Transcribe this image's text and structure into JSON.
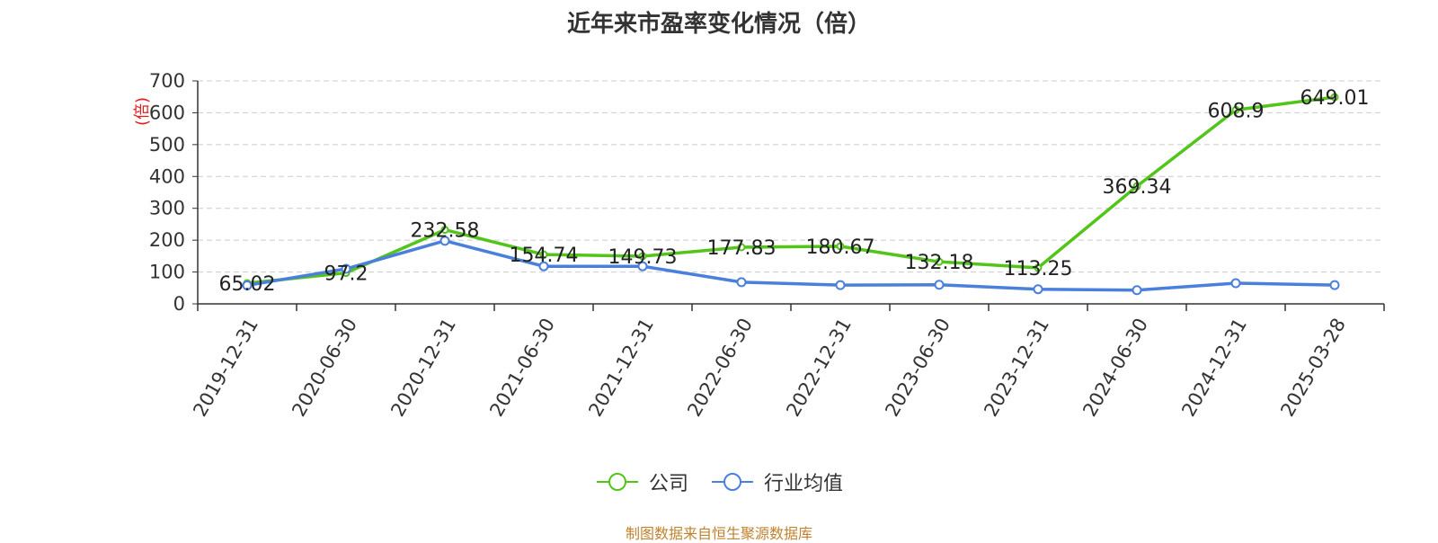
{
  "title": "近年来市盈率变化情况（倍）",
  "source": "制图数据来自恒生聚源数据库",
  "colors": {
    "company": "#52c41a",
    "industry": "#4a7fdb",
    "axis": "#333333",
    "grid": "#cccccc",
    "unit": "#e02020"
  },
  "legend": {
    "company": "公司",
    "industry": "行业均值"
  },
  "chart_data": {
    "type": "line",
    "title": "近年来市盈率变化情况（倍）",
    "ylabel": "(倍)",
    "ylim": [
      0,
      700
    ],
    "yticks": [
      0,
      100,
      200,
      300,
      400,
      500,
      600,
      700
    ],
    "grid": true,
    "legend_position": "bottom",
    "categories": [
      "2019-12-31",
      "2020-06-30",
      "2020-12-31",
      "2021-06-30",
      "2021-12-31",
      "2022-06-30",
      "2022-12-31",
      "2023-06-30",
      "2023-12-31",
      "2024-06-30",
      "2024-12-31",
      "2025-03-28"
    ],
    "series": [
      {
        "name": "公司",
        "values": [
          65.02,
          97.2,
          232.58,
          154.74,
          149.73,
          177.83,
          180.67,
          132.18,
          113.25,
          369.34,
          608.9,
          649.01
        ],
        "labels": [
          "65.02",
          "97.2",
          "232.58",
          "154.74",
          "149.73",
          "177.83",
          "180.67",
          "132.18",
          "113.25",
          "369.34",
          "608.9",
          "649.01"
        ]
      },
      {
        "name": "行业均值",
        "values": [
          58,
          110,
          198,
          118,
          118,
          68,
          59,
          60,
          46,
          43,
          65,
          59
        ]
      }
    ]
  }
}
